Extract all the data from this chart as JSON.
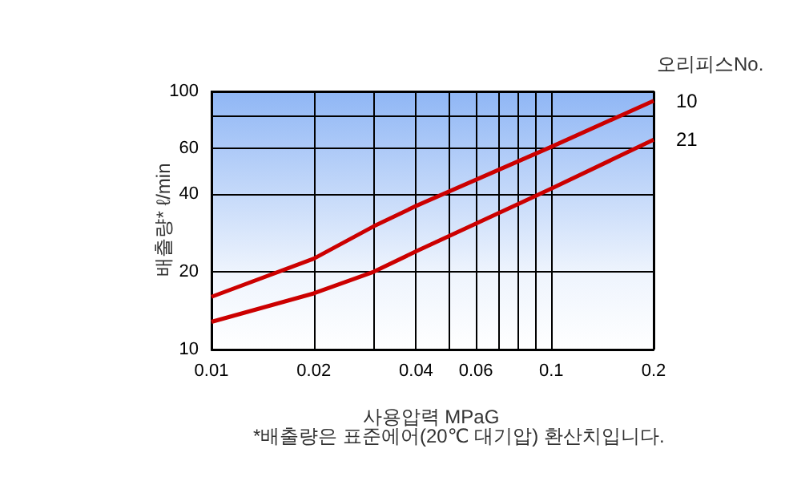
{
  "chart_data": {
    "type": "line",
    "xlabel": "사용압력 MPaG",
    "ylabel": "배출량* ℓ/min",
    "legend_title": "오리피스No.",
    "annotations": [
      "*배출량은 표준에어(20℃ 대기압) 환산치입니다."
    ],
    "series": [
      {
        "name": "10",
        "color": "#cc0000",
        "x": [
          0.01,
          0.02,
          0.03,
          0.04,
          0.1,
          0.2
        ],
        "values": [
          16,
          22.5,
          30,
          36,
          61,
          92
        ]
      },
      {
        "name": "21",
        "color": "#cc0000",
        "x": [
          0.01,
          0.02,
          0.03,
          0.04,
          0.1,
          0.2
        ],
        "values": [
          12.8,
          16.5,
          20,
          24,
          42,
          65
        ]
      }
    ],
    "log": "xy",
    "xlim": [
      0.01,
      0.2
    ],
    "ylim": [
      10,
      100
    ],
    "xticks": [
      0.01,
      0.02,
      {
        "value": 0.03,
        "label": null
      },
      0.04,
      {
        "value": 0.05,
        "label": null
      },
      0.06,
      {
        "value": 0.07,
        "label": null
      },
      {
        "value": 0.08,
        "label": null
      },
      {
        "value": 0.09,
        "label": null
      },
      0.1,
      0.2
    ],
    "yticks": [
      10,
      20,
      40,
      60,
      {
        "value": 80,
        "label": null
      },
      100
    ],
    "grid": true,
    "legend": false,
    "marker": "none",
    "line_style": "solid"
  }
}
